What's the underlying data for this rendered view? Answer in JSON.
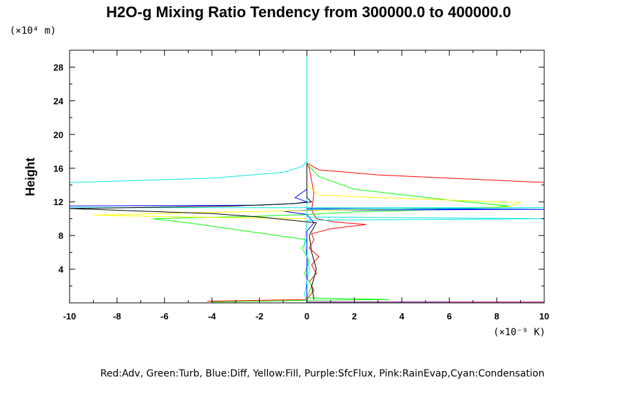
{
  "chart_data": {
    "type": "line",
    "title": "H2O-g Mixing Ratio Tendency from 300000.0 to 400000.0",
    "xlabel": "",
    "ylabel": "Height",
    "x_unit": "(×10⁻⁹ K)",
    "y_unit": "(×10⁴ m)",
    "xlim": [
      -10,
      10
    ],
    "ylim": [
      0,
      30
    ],
    "x_ticks": [
      "-10",
      "-8",
      "-6",
      "-4",
      "-2",
      "0",
      "2",
      "4",
      "6",
      "8",
      "10"
    ],
    "y_ticks": [
      "4",
      "8",
      "12",
      "16",
      "20",
      "24",
      "28"
    ],
    "legend_text": "Red:Adv, Green:Turb, Blue:Diff, Yellow:Fill, Purple:SfcFlux, Pink:RainEvap,Cyan:Condensation",
    "series": [
      {
        "name": "Adv",
        "color": "#ff0000",
        "points": [
          [
            -4.2,
            0.2
          ],
          [
            0,
            0.4
          ],
          [
            0.3,
            1.5
          ],
          [
            0.1,
            2.5
          ],
          [
            0.4,
            3.5
          ],
          [
            0.2,
            4.5
          ],
          [
            0.5,
            5.5
          ],
          [
            0.1,
            6.5
          ],
          [
            0.3,
            7.5
          ],
          [
            0.2,
            8.2
          ],
          [
            1.0,
            8.8
          ],
          [
            2.5,
            9.3
          ],
          [
            1.2,
            9.6
          ],
          [
            0.4,
            10.0
          ],
          [
            0.2,
            11.0
          ],
          [
            0.3,
            13.0
          ],
          [
            0.2,
            14.5
          ],
          [
            0.1,
            16.0
          ],
          [
            0,
            16.6
          ],
          [
            0.5,
            15.8
          ],
          [
            3.0,
            15.2
          ],
          [
            10,
            14.3
          ]
        ]
      },
      {
        "name": "Turb",
        "color": "#00ff00",
        "points": [
          [
            -4,
            0.1
          ],
          [
            0,
            0.3
          ],
          [
            3.5,
            0.4
          ],
          [
            0,
            0.6
          ],
          [
            0.2,
            2
          ],
          [
            -0.1,
            3.5
          ],
          [
            0.1,
            5
          ],
          [
            -0.2,
            6.5
          ],
          [
            0,
            7.5
          ],
          [
            -2.5,
            8.5
          ],
          [
            -5,
            9.5
          ],
          [
            -6.5,
            10.0
          ],
          [
            -2,
            10.3
          ],
          [
            0,
            10.5
          ],
          [
            2,
            10.8
          ],
          [
            7,
            11.2
          ],
          [
            8.5,
            11.5
          ],
          [
            6,
            12.2
          ],
          [
            2,
            13.5
          ],
          [
            0.5,
            15
          ],
          [
            0,
            16.5
          ]
        ]
      },
      {
        "name": "Diff",
        "color": "#0000ff",
        "points": [
          [
            -10,
            11.5
          ],
          [
            -2,
            11.6
          ],
          [
            -0.5,
            11.8
          ],
          [
            0,
            12.0
          ],
          [
            -0.5,
            12.5
          ],
          [
            0,
            13.5
          ],
          [
            0,
            14.5
          ],
          [
            0,
            11.2
          ],
          [
            10,
            11.1
          ],
          [
            0,
            11.0
          ],
          [
            -1,
            10.9
          ],
          [
            0,
            10.5
          ],
          [
            0.3,
            9.5
          ],
          [
            0,
            8.5
          ],
          [
            0,
            5
          ],
          [
            0,
            1
          ],
          [
            0,
            0
          ]
        ]
      },
      {
        "name": "Fill",
        "color": "#ffff00",
        "points": [
          [
            0,
            15.5
          ],
          [
            0,
            14
          ],
          [
            0.5,
            12.8
          ],
          [
            3,
            12.5
          ],
          [
            9,
            11.9
          ],
          [
            8.5,
            11.4
          ],
          [
            -5,
            10.7
          ],
          [
            -9,
            10.4
          ],
          [
            -3,
            10.1
          ],
          [
            0,
            10.0
          ]
        ]
      },
      {
        "name": "SfcFlux",
        "color": "#800080",
        "points": [
          [
            0,
            0.1
          ],
          [
            10,
            0.1
          ]
        ]
      },
      {
        "name": "RainEvap",
        "color": "#ff69b4",
        "points": [
          [
            6,
            0.05
          ],
          [
            10,
            0.05
          ]
        ]
      },
      {
        "name": "Condensation",
        "color": "#00e5e5",
        "points": [
          [
            -10,
            14.3
          ],
          [
            -4,
            14.8
          ],
          [
            -1,
            15.5
          ],
          [
            -0.2,
            16.2
          ],
          [
            0,
            16.8
          ],
          [
            0,
            30
          ],
          [
            0,
            16.5
          ],
          [
            0,
            11.3
          ],
          [
            -10,
            11.3
          ],
          [
            10,
            11.3
          ],
          [
            0,
            11.1
          ],
          [
            0,
            10.2
          ],
          [
            10,
            10.0
          ],
          [
            0,
            9.8
          ],
          [
            -0.1,
            7
          ],
          [
            0.1,
            4
          ],
          [
            -0.1,
            1
          ],
          [
            0,
            0
          ]
        ]
      },
      {
        "name": "",
        "color": "#000000",
        "points": [
          [
            0.3,
            0.4
          ],
          [
            0.2,
            2
          ],
          [
            0.4,
            4
          ],
          [
            0.2,
            6
          ],
          [
            0.1,
            8
          ],
          [
            0.4,
            9.5
          ],
          [
            -2,
            10.2
          ],
          [
            -4,
            10.6
          ],
          [
            -10,
            11.2
          ],
          [
            -3,
            11.5
          ],
          [
            -0.5,
            11.8
          ],
          [
            0.2,
            12.0
          ],
          [
            0,
            12.5
          ],
          [
            0,
            16.5
          ]
        ]
      }
    ]
  }
}
